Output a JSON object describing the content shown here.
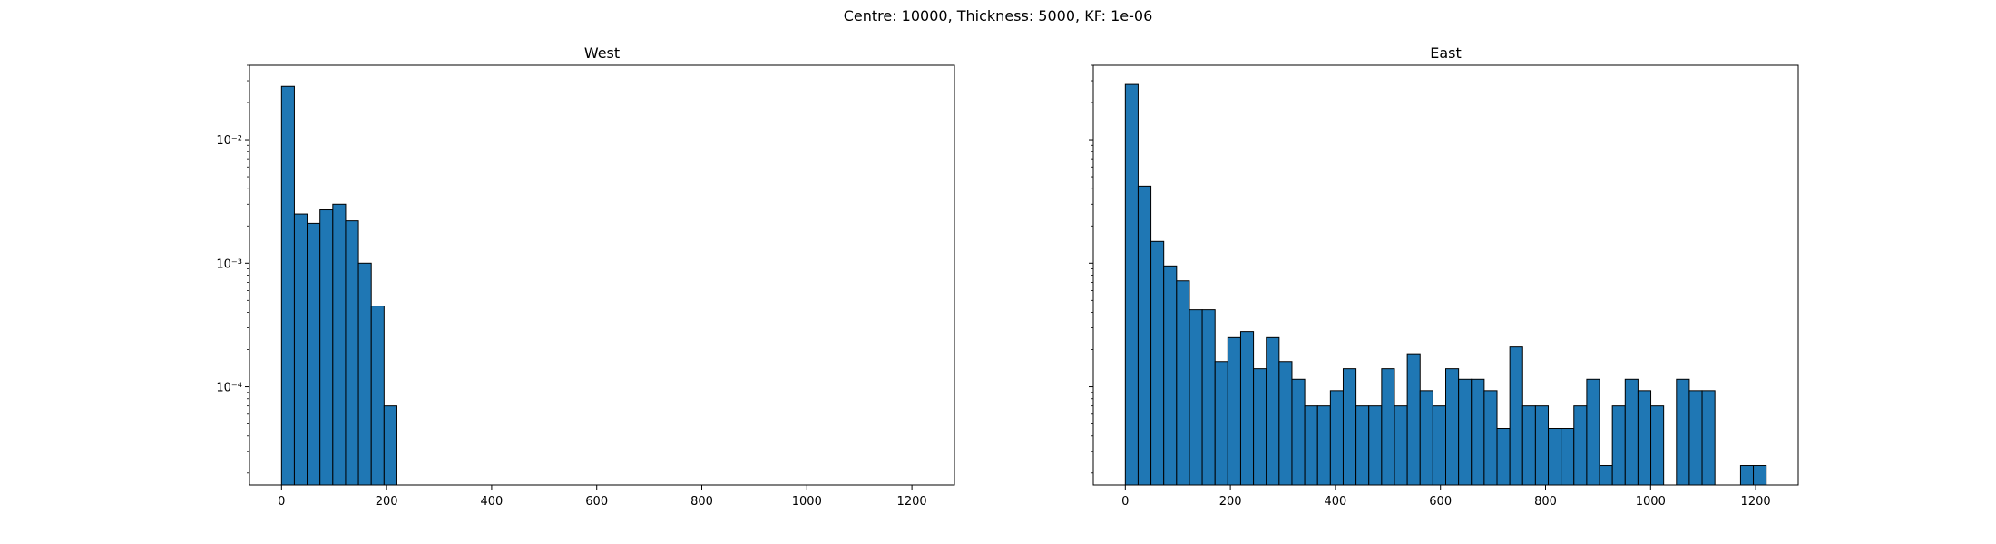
{
  "suptitle": "Centre: 10000, Thickness: 5000, KF: 1e-06",
  "colors": {
    "bar_fill": "#1f77b4",
    "bar_edge": "#000000",
    "axes": "#000000",
    "background": "#ffffff"
  },
  "chart_data": [
    {
      "type": "bar",
      "title": "West",
      "xlabel": "",
      "ylabel": "",
      "yscale": "log",
      "grid": false,
      "bin_width": 24.4,
      "xlim": [
        -61,
        1281
      ],
      "ylim": [
        1.6e-05,
        0.04
      ],
      "xticks": [
        0,
        200,
        400,
        600,
        800,
        1000,
        1200
      ],
      "yticks": [
        {
          "value": 0.0001,
          "label": "10⁻⁴"
        },
        {
          "value": 0.001,
          "label": "10⁻³"
        },
        {
          "value": 0.01,
          "label": "10⁻²"
        }
      ],
      "bin_starts": [
        0,
        24.4,
        48.8,
        73.2,
        97.6,
        122,
        146.4,
        170.8,
        195.2
      ],
      "values": [
        0.027,
        0.0025,
        0.0021,
        0.0027,
        0.003,
        0.0022,
        0.001,
        0.00045,
        7e-05
      ]
    },
    {
      "type": "bar",
      "title": "East",
      "xlabel": "",
      "ylabel": "",
      "yscale": "log",
      "grid": false,
      "bin_width": 24.4,
      "xlim": [
        -61,
        1281
      ],
      "ylim": [
        1.6e-05,
        0.04
      ],
      "xticks": [
        0,
        200,
        400,
        600,
        800,
        1000,
        1200
      ],
      "yticks": [
        {
          "value": 0.0001,
          "label": ""
        },
        {
          "value": 0.001,
          "label": ""
        },
        {
          "value": 0.01,
          "label": ""
        }
      ],
      "bin_starts": [
        0,
        24.4,
        48.8,
        73.2,
        97.6,
        122,
        146.4,
        170.8,
        195.2,
        219.6,
        244,
        268.4,
        292.8,
        317.2,
        341.6,
        366,
        390.4,
        414.8,
        439.2,
        463.6,
        488,
        512.4,
        536.8,
        561.2,
        585.6,
        610,
        634.4,
        658.8,
        683.2,
        707.6,
        732,
        756.4,
        780.8,
        805.2,
        829.6,
        854,
        878.4,
        902.8,
        927.2,
        951.6,
        976,
        1000.4,
        1024.8,
        1049.2,
        1073.6,
        1098,
        1122.4,
        1146.8,
        1171.2,
        1195.6
      ],
      "values": [
        0.028,
        0.0042,
        0.0015,
        0.00095,
        0.00072,
        0.00042,
        0.00042,
        0.00016,
        0.00025,
        0.00028,
        0.00014,
        0.00025,
        0.00016,
        0.000115,
        7e-05,
        7e-05,
        9.3e-05,
        0.00014,
        7e-05,
        7e-05,
        0.00014,
        7e-05,
        0.000185,
        9.3e-05,
        7e-05,
        0.00014,
        0.000115,
        0.000115,
        9.3e-05,
        4.6e-05,
        0.00021,
        7e-05,
        7e-05,
        4.6e-05,
        4.6e-05,
        7e-05,
        0.000115,
        2.3e-05,
        7e-05,
        0.000115,
        9.3e-05,
        7e-05,
        0,
        0.000115,
        9.3e-05,
        9.3e-05,
        0,
        0,
        2.3e-05,
        2.3e-05
      ]
    }
  ]
}
